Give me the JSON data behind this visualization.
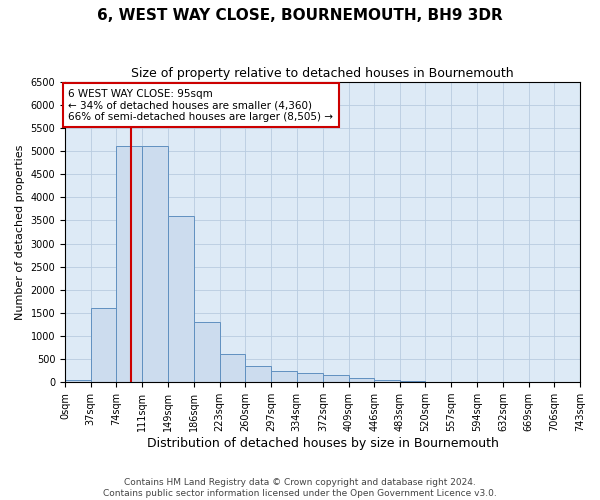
{
  "title": "6, WEST WAY CLOSE, BOURNEMOUTH, BH9 3DR",
  "subtitle": "Size of property relative to detached houses in Bournemouth",
  "xlabel": "Distribution of detached houses by size in Bournemouth",
  "ylabel": "Number of detached properties",
  "bin_edges": [
    0,
    37,
    74,
    111,
    149,
    186,
    223,
    260,
    297,
    334,
    372,
    409,
    446,
    483,
    520,
    557,
    594,
    632,
    669,
    706,
    743
  ],
  "bar_heights": [
    50,
    1600,
    5100,
    5100,
    3600,
    1300,
    600,
    350,
    250,
    200,
    150,
    100,
    50,
    20,
    10,
    5,
    3,
    2,
    1,
    1
  ],
  "bar_color": "#ccdcee",
  "bar_edge_color": "#6090c0",
  "grid_color": "#b8cce0",
  "background_color": "#ddeaf6",
  "vline_x": 95,
  "vline_color": "#cc0000",
  "annotation_text": "6 WEST WAY CLOSE: 95sqm\n← 34% of detached houses are smaller (4,360)\n66% of semi-detached houses are larger (8,505) →",
  "annotation_box_color": "white",
  "annotation_box_edge_color": "#cc0000",
  "ylim": [
    0,
    6500
  ],
  "yticks": [
    0,
    500,
    1000,
    1500,
    2000,
    2500,
    3000,
    3500,
    4000,
    4500,
    5000,
    5500,
    6000,
    6500
  ],
  "footer_line1": "Contains HM Land Registry data © Crown copyright and database right 2024.",
  "footer_line2": "Contains public sector information licensed under the Open Government Licence v3.0.",
  "title_fontsize": 11,
  "subtitle_fontsize": 9,
  "xlabel_fontsize": 9,
  "ylabel_fontsize": 8,
  "tick_fontsize": 7,
  "annotation_fontsize": 7.5,
  "footer_fontsize": 6.5
}
